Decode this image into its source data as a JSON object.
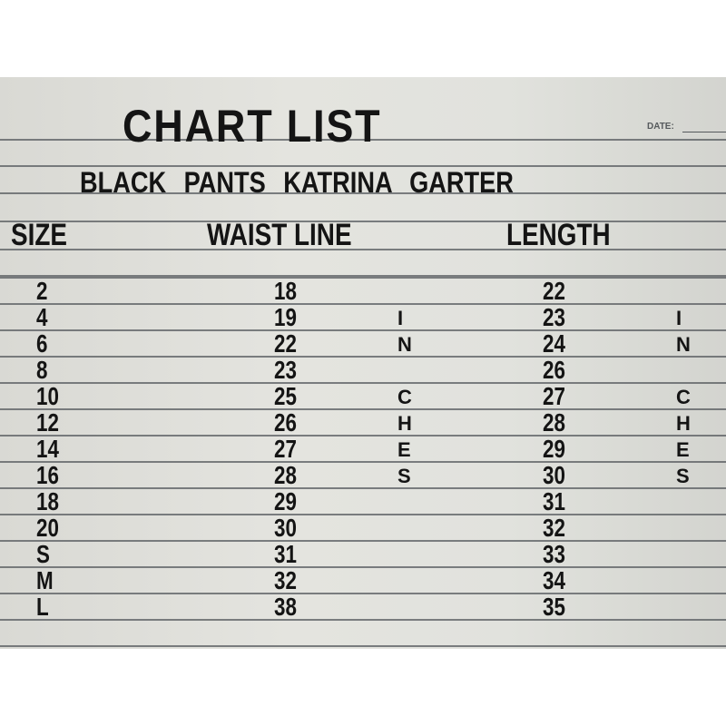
{
  "title": "CHART LIST",
  "date_label": "DATE:",
  "subtitle": "BLACK PANTS KATRINA GARTER",
  "columns": {
    "size": "SIZE",
    "waist": "WAIST LINE",
    "length": "LENGTH"
  },
  "unit_label": "INCHES",
  "rows": [
    {
      "size": "2",
      "waist": "18",
      "length": "22"
    },
    {
      "size": "4",
      "waist": "19",
      "length": "23"
    },
    {
      "size": "6",
      "waist": "22",
      "length": "24"
    },
    {
      "size": "8",
      "waist": "23",
      "length": "26"
    },
    {
      "size": "10",
      "waist": "25",
      "length": "27"
    },
    {
      "size": "12",
      "waist": "26",
      "length": "28"
    },
    {
      "size": "14",
      "waist": "27",
      "length": "29"
    },
    {
      "size": "16",
      "waist": "28",
      "length": "30"
    },
    {
      "size": "18",
      "waist": "29",
      "length": "31"
    },
    {
      "size": "20",
      "waist": "30",
      "length": "32"
    },
    {
      "size": "S",
      "waist": "31",
      "length": "33"
    },
    {
      "size": "M",
      "waist": "32",
      "length": "34"
    },
    {
      "size": "L",
      "waist": "38",
      "length": "35"
    }
  ]
}
